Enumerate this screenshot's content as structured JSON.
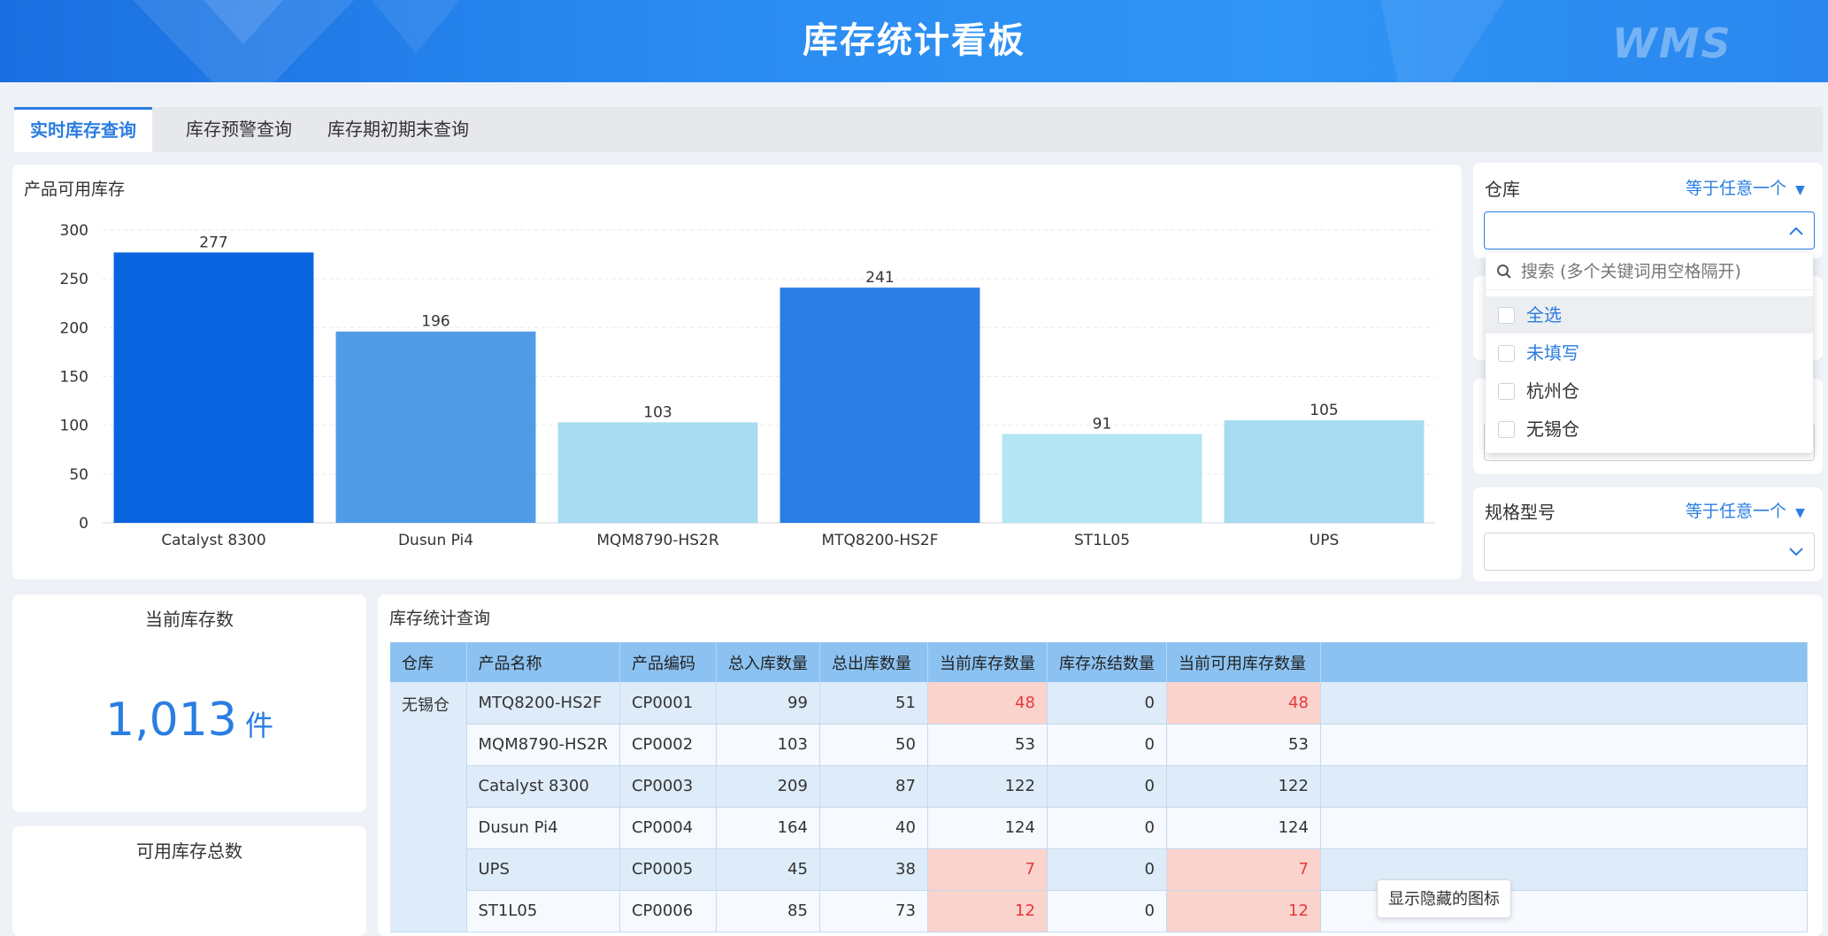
{
  "header": {
    "title": "库存统计看板",
    "logo": "WMS"
  },
  "tabs": [
    {
      "label": "实时库存查询",
      "active": true
    },
    {
      "label": "库存预警查询",
      "active": false
    },
    {
      "label": "库存期初期末查询",
      "active": false
    }
  ],
  "chart_card": {
    "title": "产品可用库存"
  },
  "chart_data": {
    "type": "bar",
    "categories": [
      "Catalyst 8300",
      "Dusun Pi4",
      "MQM8790-HS2R",
      "MTQ8200-HS2F",
      "ST1L05",
      "UPS"
    ],
    "values": [
      277,
      196,
      103,
      241,
      91,
      105
    ],
    "ylim": [
      0,
      300
    ],
    "yticks": [
      0,
      50,
      100,
      150,
      200,
      250,
      300
    ],
    "bar_colors": [
      "#0a64e0",
      "#4f9be6",
      "#a8dcf1",
      "#2a7ee6",
      "#b4e6f4",
      "#a6dbf0"
    ],
    "grid": true
  },
  "filters": {
    "warehouse": {
      "label": "仓库",
      "mode": "等于任意一个"
    },
    "spec": {
      "label": "规格型号",
      "mode": "等于任意一个"
    },
    "dropdown": {
      "search_placeholder": "搜索 (多个关键词用空格隔开)",
      "options": [
        {
          "label": "全选",
          "color": "#2a7de1"
        },
        {
          "label": "未填写",
          "color": "#2a7de1"
        },
        {
          "label": "杭州仓",
          "color": "#333333"
        },
        {
          "label": "无锡仓",
          "color": "#333333"
        }
      ]
    }
  },
  "kpi_current": {
    "title": "当前库存数",
    "value": "1,013",
    "unit": "件"
  },
  "kpi_available": {
    "title": "可用库存总数"
  },
  "table": {
    "title": "库存统计查询",
    "columns": [
      "仓库",
      "产品名称",
      "产品编码",
      "总入库数量",
      "总出库数量",
      "当前库存数量",
      "库存冻结数量",
      "当前可用库存数量"
    ],
    "warehouse": "无锡仓",
    "rows": [
      {
        "name": "MTQ8200-HS2F",
        "code": "CP0001",
        "in": "99",
        "out": "51",
        "current": "48",
        "frozen": "0",
        "available": "48",
        "warn": true
      },
      {
        "name": "MQM8790-HS2R",
        "code": "CP0002",
        "in": "103",
        "out": "50",
        "current": "53",
        "frozen": "0",
        "available": "53",
        "warn": false
      },
      {
        "name": "Catalyst 8300",
        "code": "CP0003",
        "in": "209",
        "out": "87",
        "current": "122",
        "frozen": "0",
        "available": "122",
        "warn": false
      },
      {
        "name": "Dusun Pi4",
        "code": "CP0004",
        "in": "164",
        "out": "40",
        "current": "124",
        "frozen": "0",
        "available": "124",
        "warn": false
      },
      {
        "name": "UPS",
        "code": "CP0005",
        "in": "45",
        "out": "38",
        "current": "7",
        "frozen": "0",
        "available": "7",
        "warn": true
      },
      {
        "name": "ST1L05",
        "code": "CP0006",
        "in": "85",
        "out": "73",
        "current": "12",
        "frozen": "0",
        "available": "12",
        "warn": true
      }
    ]
  },
  "tooltip": {
    "text": "显示隐藏的图标"
  }
}
